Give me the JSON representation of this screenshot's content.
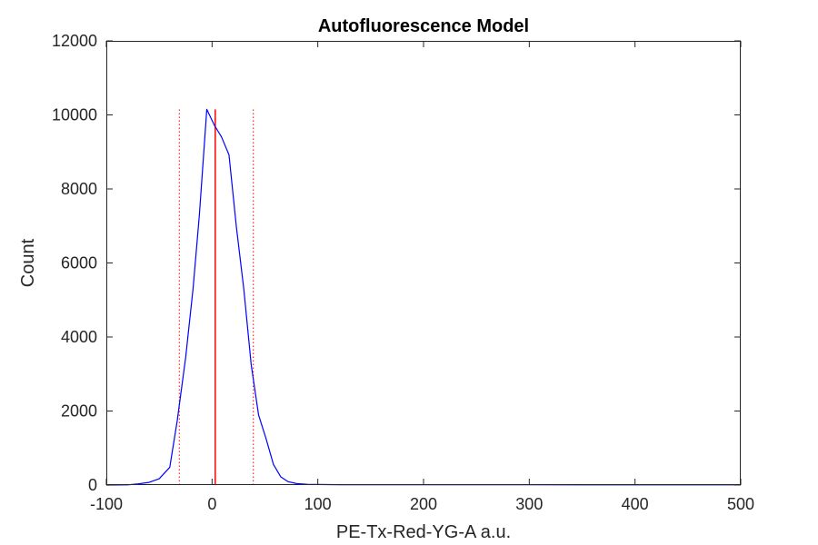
{
  "chart_data": {
    "type": "line",
    "title": "Autofluorescence Model",
    "xlabel": "PE-Tx-Red-YG-A a.u.",
    "ylabel": "Count",
    "xlim": [
      -100,
      500
    ],
    "ylim": [
      0,
      12000
    ],
    "xticks": [
      -100,
      0,
      100,
      200,
      300,
      400,
      500
    ],
    "xtick_labels": [
      "-100",
      "0",
      "100",
      "200",
      "300",
      "400",
      "500"
    ],
    "yticks": [
      0,
      2000,
      4000,
      6000,
      8000,
      10000,
      12000
    ],
    "ytick_labels": [
      "0",
      "2000",
      "4000",
      "6000",
      "8000",
      "10000",
      "12000"
    ],
    "grid": false,
    "box": true,
    "series": [
      {
        "color": "#0000ff",
        "x": [
          -100,
          -90,
          -80,
          -70,
          -60,
          -50,
          -40,
          -33,
          -25,
          -18,
          -12,
          -5,
          2,
          9,
          16,
          23,
          30,
          37,
          44,
          51,
          58,
          65,
          72,
          80,
          90,
          100,
          120,
          150,
          200,
          250,
          300,
          350,
          400,
          450,
          495
        ],
        "y": [
          0,
          2,
          5,
          30,
          70,
          170,
          480,
          1730,
          3440,
          5300,
          7300,
          10150,
          9730,
          9400,
          8920,
          6970,
          5300,
          3250,
          1890,
          1260,
          560,
          220,
          90,
          40,
          20,
          15,
          10,
          10,
          10,
          8,
          8,
          5,
          5,
          5,
          5
        ]
      }
    ],
    "vertical_lines": [
      {
        "x": 3,
        "y_top": 10150,
        "style": "solid",
        "color": "#ff0000"
      },
      {
        "x": -31,
        "y_top": 10150,
        "style": "dotted",
        "color": "#ff0000"
      },
      {
        "x": 39,
        "y_top": 10150,
        "style": "dotted",
        "color": "#ff0000"
      }
    ]
  }
}
